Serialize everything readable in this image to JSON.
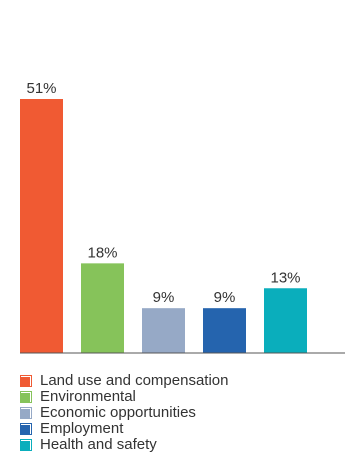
{
  "chart_data": {
    "type": "bar",
    "categories": [
      "Land use and compensation",
      "Environmental",
      "Economic opportunities",
      "Employment",
      "Health and safety"
    ],
    "values": [
      51,
      18,
      9,
      9,
      13
    ],
    "value_labels": [
      "51%",
      "18%",
      "9%",
      "9%",
      "13%"
    ],
    "colors": [
      "#f05a33",
      "#86c35a",
      "#96a9c6",
      "#2564ae",
      "#0aaebc"
    ],
    "ylim": [
      0,
      51
    ],
    "grid": false,
    "legend_position": "bottom-left",
    "title": "",
    "xlabel": "",
    "ylabel": ""
  }
}
